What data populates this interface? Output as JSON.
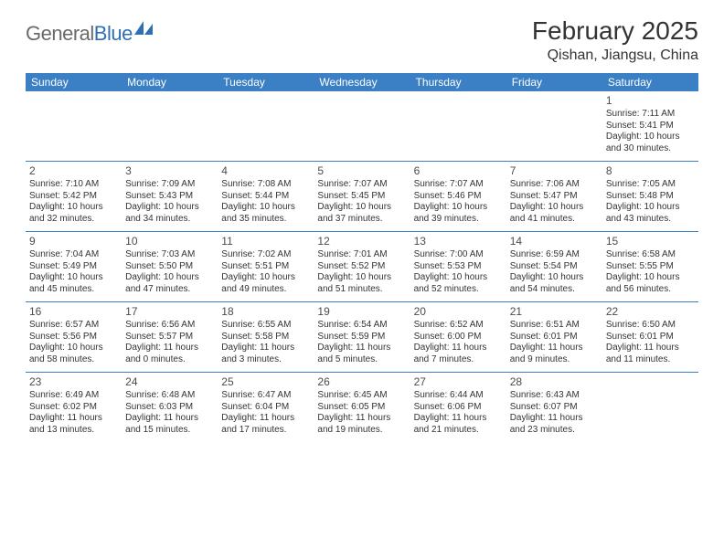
{
  "brand": {
    "part1": "General",
    "part2": "Blue"
  },
  "title": "February 2025",
  "location": "Qishan, Jiangsu, China",
  "colors": {
    "header_bar": "#3b7fc4",
    "divider": "#3b7fc4",
    "logo_gray": "#6a6a6a",
    "logo_blue": "#2f6fb3",
    "text": "#333333",
    "background": "#ffffff"
  },
  "typography": {
    "title_fontsize": 28,
    "location_fontsize": 16,
    "dow_fontsize": 12,
    "daynum_fontsize": 12,
    "body_fontsize": 10
  },
  "dow": [
    "Sunday",
    "Monday",
    "Tuesday",
    "Wednesday",
    "Thursday",
    "Friday",
    "Saturday"
  ],
  "weeks": [
    [
      null,
      null,
      null,
      null,
      null,
      null,
      {
        "n": "1",
        "sr": "7:11 AM",
        "ss": "5:41 PM",
        "dl": "10 hours and 30 minutes."
      }
    ],
    [
      {
        "n": "2",
        "sr": "7:10 AM",
        "ss": "5:42 PM",
        "dl": "10 hours and 32 minutes."
      },
      {
        "n": "3",
        "sr": "7:09 AM",
        "ss": "5:43 PM",
        "dl": "10 hours and 34 minutes."
      },
      {
        "n": "4",
        "sr": "7:08 AM",
        "ss": "5:44 PM",
        "dl": "10 hours and 35 minutes."
      },
      {
        "n": "5",
        "sr": "7:07 AM",
        "ss": "5:45 PM",
        "dl": "10 hours and 37 minutes."
      },
      {
        "n": "6",
        "sr": "7:07 AM",
        "ss": "5:46 PM",
        "dl": "10 hours and 39 minutes."
      },
      {
        "n": "7",
        "sr": "7:06 AM",
        "ss": "5:47 PM",
        "dl": "10 hours and 41 minutes."
      },
      {
        "n": "8",
        "sr": "7:05 AM",
        "ss": "5:48 PM",
        "dl": "10 hours and 43 minutes."
      }
    ],
    [
      {
        "n": "9",
        "sr": "7:04 AM",
        "ss": "5:49 PM",
        "dl": "10 hours and 45 minutes."
      },
      {
        "n": "10",
        "sr": "7:03 AM",
        "ss": "5:50 PM",
        "dl": "10 hours and 47 minutes."
      },
      {
        "n": "11",
        "sr": "7:02 AM",
        "ss": "5:51 PM",
        "dl": "10 hours and 49 minutes."
      },
      {
        "n": "12",
        "sr": "7:01 AM",
        "ss": "5:52 PM",
        "dl": "10 hours and 51 minutes."
      },
      {
        "n": "13",
        "sr": "7:00 AM",
        "ss": "5:53 PM",
        "dl": "10 hours and 52 minutes."
      },
      {
        "n": "14",
        "sr": "6:59 AM",
        "ss": "5:54 PM",
        "dl": "10 hours and 54 minutes."
      },
      {
        "n": "15",
        "sr": "6:58 AM",
        "ss": "5:55 PM",
        "dl": "10 hours and 56 minutes."
      }
    ],
    [
      {
        "n": "16",
        "sr": "6:57 AM",
        "ss": "5:56 PM",
        "dl": "10 hours and 58 minutes."
      },
      {
        "n": "17",
        "sr": "6:56 AM",
        "ss": "5:57 PM",
        "dl": "11 hours and 0 minutes."
      },
      {
        "n": "18",
        "sr": "6:55 AM",
        "ss": "5:58 PM",
        "dl": "11 hours and 3 minutes."
      },
      {
        "n": "19",
        "sr": "6:54 AM",
        "ss": "5:59 PM",
        "dl": "11 hours and 5 minutes."
      },
      {
        "n": "20",
        "sr": "6:52 AM",
        "ss": "6:00 PM",
        "dl": "11 hours and 7 minutes."
      },
      {
        "n": "21",
        "sr": "6:51 AM",
        "ss": "6:01 PM",
        "dl": "11 hours and 9 minutes."
      },
      {
        "n": "22",
        "sr": "6:50 AM",
        "ss": "6:01 PM",
        "dl": "11 hours and 11 minutes."
      }
    ],
    [
      {
        "n": "23",
        "sr": "6:49 AM",
        "ss": "6:02 PM",
        "dl": "11 hours and 13 minutes."
      },
      {
        "n": "24",
        "sr": "6:48 AM",
        "ss": "6:03 PM",
        "dl": "11 hours and 15 minutes."
      },
      {
        "n": "25",
        "sr": "6:47 AM",
        "ss": "6:04 PM",
        "dl": "11 hours and 17 minutes."
      },
      {
        "n": "26",
        "sr": "6:45 AM",
        "ss": "6:05 PM",
        "dl": "11 hours and 19 minutes."
      },
      {
        "n": "27",
        "sr": "6:44 AM",
        "ss": "6:06 PM",
        "dl": "11 hours and 21 minutes."
      },
      {
        "n": "28",
        "sr": "6:43 AM",
        "ss": "6:07 PM",
        "dl": "11 hours and 23 minutes."
      },
      null
    ]
  ],
  "labels": {
    "sunrise": "Sunrise: ",
    "sunset": "Sunset: ",
    "daylight": "Daylight: "
  }
}
